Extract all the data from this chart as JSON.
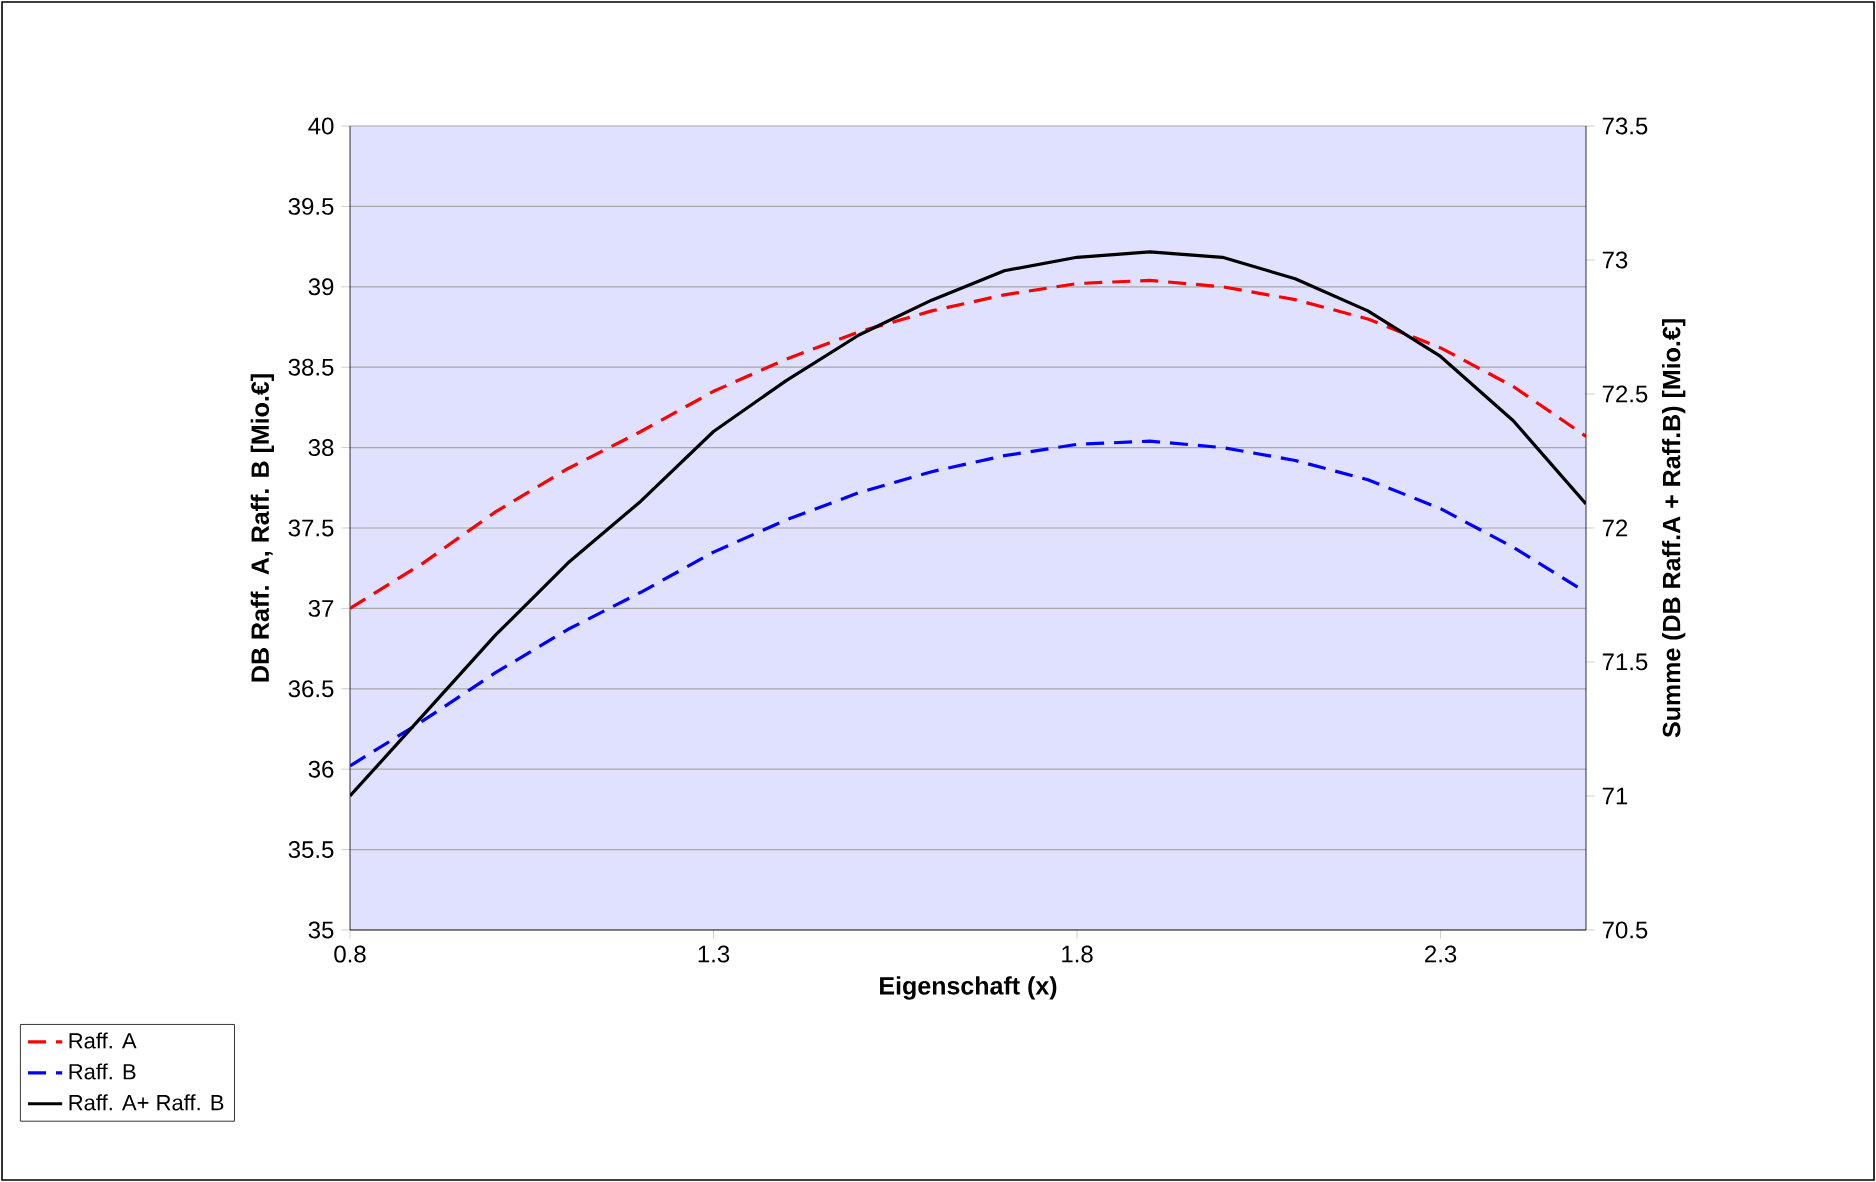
{
  "chart_data": {
    "type": "line",
    "xlabel": "Eigenschaft (x)",
    "ylabel": "DB Raff. A, Raff. B [Mio.€]",
    "y2label": "Summe (DB Raff.A + Raff.B) [Mio.€]",
    "xlim": [
      0.8,
      2.5
    ],
    "xticks": [
      0.8,
      1.3,
      1.8,
      2.3
    ],
    "ylim": [
      35,
      40
    ],
    "yticks": [
      35,
      35.5,
      36,
      36.5,
      37,
      37.5,
      38,
      38.5,
      39,
      39.5,
      40
    ],
    "y2lim": [
      70.5,
      73.5
    ],
    "y2ticks": [
      70.5,
      71,
      71.5,
      72,
      72.5,
      73,
      73.5
    ],
    "x": [
      0.8,
      0.9,
      1.0,
      1.1,
      1.2,
      1.3,
      1.4,
      1.5,
      1.6,
      1.7,
      1.8,
      1.9,
      2.0,
      2.1,
      2.2,
      2.3,
      2.4,
      2.5
    ],
    "series": [
      {
        "name": "Raff. A",
        "color": "#ff0000",
        "line_style": "dashed",
        "values": [
          37.0,
          37.28,
          37.6,
          37.87,
          38.1,
          38.35,
          38.55,
          38.72,
          38.85,
          38.95,
          39.02,
          39.04,
          39.0,
          38.92,
          38.8,
          38.62,
          38.38,
          38.07
        ]
      },
      {
        "name": "Raff. B",
        "color": "#0000ff",
        "line_style": "dashed",
        "values": [
          36.02,
          36.3,
          36.6,
          36.87,
          37.1,
          37.35,
          37.55,
          37.72,
          37.85,
          37.95,
          38.02,
          38.04,
          38.0,
          37.92,
          37.8,
          37.62,
          37.38,
          37.1
        ]
      },
      {
        "name": "Raff. A+ Raff. B",
        "color": "#000000",
        "line_style": "solid",
        "axis": "y2",
        "values": [
          71.0,
          71.3,
          71.6,
          71.87,
          72.1,
          72.36,
          72.55,
          72.72,
          72.85,
          72.96,
          73.01,
          73.03,
          73.01,
          72.93,
          72.81,
          72.64,
          72.4,
          72.09
        ]
      }
    ],
    "grid": "y",
    "legend": "bottom left",
    "marker": "none"
  }
}
